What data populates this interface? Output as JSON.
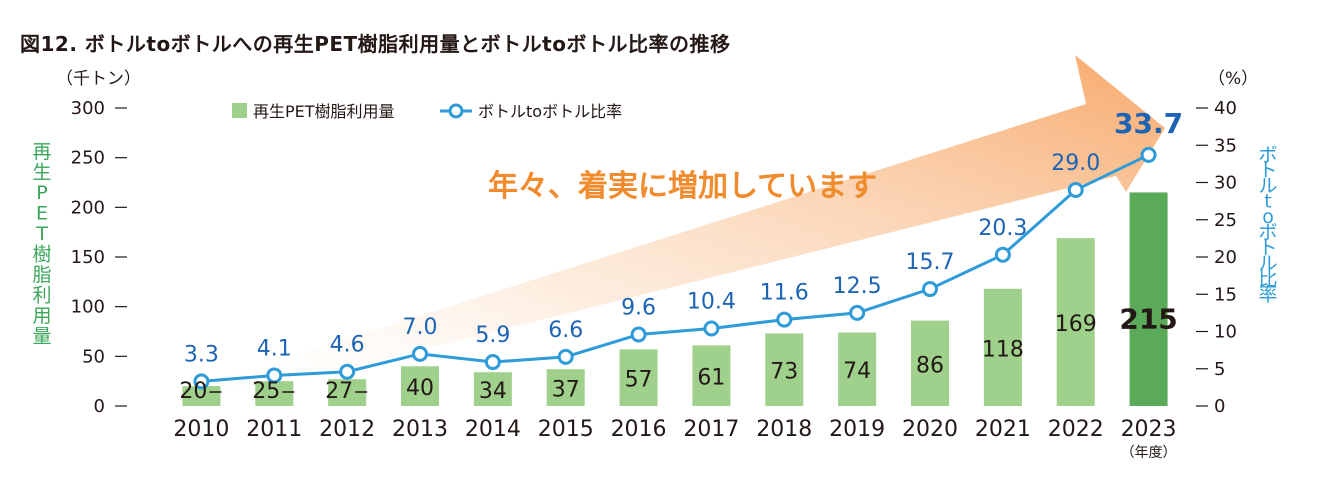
{
  "title": "図12. ボトルtoボトルへの再生PET樹脂利用量とボトルtoボトル比率の推移",
  "annotation": "年々、着実に増加しています",
  "colors": {
    "bar": "#9fd08c",
    "bar_highlight": "#5aaa5a",
    "line": "#2f9bd8",
    "line_label": "#1e64b4",
    "arrow": "#f7b27a",
    "annotation": "#f08c2e",
    "left_axis_label": "#3aa65a",
    "right_axis_label": "#2f9bd8"
  },
  "chart_data": {
    "type": "bar",
    "categories": [
      "2010",
      "2011",
      "2012",
      "2013",
      "2014",
      "2015",
      "2016",
      "2017",
      "2018",
      "2019",
      "2020",
      "2021",
      "2022",
      "2023"
    ],
    "x_unit": "（年度）",
    "series": [
      {
        "name": "再生PET樹脂利用量",
        "type": "bar",
        "axis": "left",
        "values": [
          20,
          25,
          27,
          40,
          34,
          37,
          57,
          61,
          73,
          74,
          86,
          118,
          169,
          215
        ],
        "labels": [
          "20",
          "25",
          "27",
          "40",
          "34",
          "37",
          "57",
          "61",
          "73",
          "74",
          "86",
          "118",
          "169",
          "215"
        ]
      },
      {
        "name": "ボトルtoボトル比率",
        "type": "line",
        "axis": "right",
        "values": [
          3.3,
          4.1,
          4.6,
          7.0,
          5.9,
          6.6,
          9.6,
          10.4,
          11.6,
          12.5,
          15.7,
          20.3,
          29.0,
          33.7
        ],
        "labels": [
          "3.3",
          "4.1",
          "4.6",
          "7.0",
          "5.9",
          "6.6",
          "9.6",
          "10.4",
          "11.6",
          "12.5",
          "15.7",
          "20.3",
          "29.0",
          "33.7"
        ]
      }
    ],
    "y_left": {
      "label": "再生PET樹脂利用量",
      "unit": "（千トン）",
      "range": [
        0,
        300
      ],
      "ticks": [
        "0",
        "50",
        "100",
        "150",
        "200",
        "250",
        "300"
      ]
    },
    "y_right": {
      "label": "ボトルtoボトル比率",
      "unit": "（%）",
      "range": [
        0,
        40
      ],
      "ticks": [
        "0",
        "5",
        "10",
        "15",
        "20",
        "25",
        "30",
        "35",
        "40"
      ]
    },
    "legend_position": "top-left",
    "grid": false
  }
}
